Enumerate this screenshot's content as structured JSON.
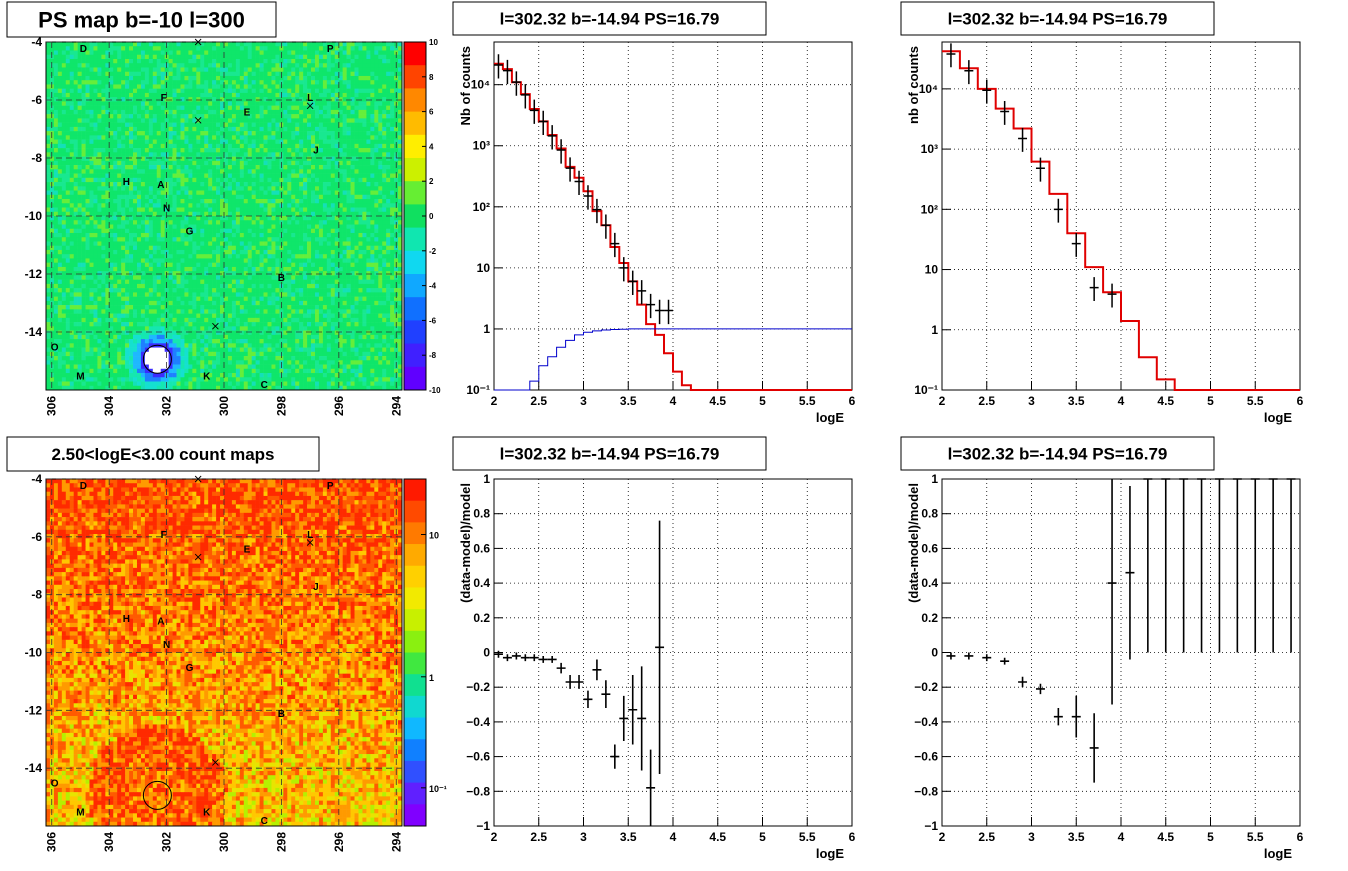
{
  "chart_data": [
    {
      "type": "heatmap",
      "title": "PS map b=-10 l=300",
      "x_ticks": [
        "306",
        "304",
        "302",
        "300",
        "298",
        "296",
        "294"
      ],
      "y_ticks": [
        "-4",
        "-6",
        "-8",
        "-10",
        "-12",
        "-14"
      ],
      "colorbar_ticks": [
        "10",
        "8",
        "6",
        "4",
        "2",
        "0",
        "-2",
        "-4",
        "-6",
        "-8",
        "-10"
      ],
      "x_range": [
        306.2,
        293.8
      ],
      "y_range": [
        -16,
        -4
      ],
      "markers": [
        {
          "label": "D",
          "l": 304.9,
          "b": -4.2
        },
        {
          "label": "P",
          "l": 296.3,
          "b": -4.2
        },
        {
          "label": "F",
          "l": 302.1,
          "b": -5.9
        },
        {
          "label": "L",
          "l": 297.0,
          "b": -5.9
        },
        {
          "label": "E",
          "l": 299.2,
          "b": -6.4
        },
        {
          "label": "J",
          "l": 296.8,
          "b": -7.7
        },
        {
          "label": "H",
          "l": 303.4,
          "b": -8.8
        },
        {
          "label": "A",
          "l": 302.2,
          "b": -8.9
        },
        {
          "label": "N",
          "l": 302.0,
          "b": -9.7
        },
        {
          "label": "G",
          "l": 301.2,
          "b": -10.5
        },
        {
          "label": "B",
          "l": 298.0,
          "b": -12.1
        },
        {
          "label": "O",
          "l": 305.9,
          "b": -14.5
        },
        {
          "label": "M",
          "l": 305.0,
          "b": -15.5
        },
        {
          "label": "K",
          "l": 300.6,
          "b": -15.5
        },
        {
          "label": "C",
          "l": 298.6,
          "b": -15.8
        }
      ],
      "crosses": [
        {
          "l": 300.9,
          "b": -4
        },
        {
          "l": 300.9,
          "b": -6.7
        },
        {
          "l": 297,
          "b": -6.2
        },
        {
          "l": 300.3,
          "b": -13.8
        }
      ],
      "circle": {
        "l": 302.32,
        "b": -14.94
      }
    },
    {
      "type": "line",
      "title": "l=302.32 b=-14.94 PS=16.79",
      "xlabel": "logE",
      "ylabel": "Nb of counts",
      "x_ticks": [
        "2",
        "2.5",
        "3",
        "3.5",
        "4",
        "4.5",
        "5",
        "5.5",
        "6"
      ],
      "y_ticks": [
        "10⁻¹",
        "1",
        "10",
        "10²",
        "10³",
        "10⁴"
      ],
      "xlim": [
        2,
        6
      ],
      "ylim": [
        0.1,
        50000
      ],
      "y_log": true,
      "series": [
        {
          "role": "model",
          "color": "#e00000",
          "step_edges": [
            2,
            2.1,
            2.2,
            2.3,
            2.4,
            2.5,
            2.6,
            2.7,
            2.8,
            2.9,
            3.0,
            3.1,
            3.2,
            3.3,
            3.4,
            3.5,
            3.6,
            3.7,
            3.8,
            3.9,
            4.0,
            4.1,
            4.2,
            4.3,
            4.4,
            6.0
          ],
          "values": [
            22000,
            18000,
            11000,
            7000,
            4000,
            2500,
            1500,
            900,
            450,
            300,
            180,
            85,
            50,
            22,
            12,
            6,
            2.5,
            1.2,
            0.8,
            0.4,
            0.2,
            0.12,
            0.1,
            0.1,
            0.1
          ]
        },
        {
          "role": "blue",
          "color": "#0000cc",
          "step_edges": [
            2,
            2.4,
            2.5,
            2.6,
            2.7,
            2.8,
            2.9,
            3.0,
            3.1,
            3.2,
            3.3,
            3.4,
            3.5,
            6.0
          ],
          "values": [
            0.1,
            0.14,
            0.25,
            0.35,
            0.5,
            0.65,
            0.8,
            0.88,
            0.93,
            0.96,
            0.98,
            0.99,
            1.0
          ]
        },
        {
          "role": "data",
          "color": "#000000",
          "x": [
            2.05,
            2.15,
            2.25,
            2.35,
            2.45,
            2.55,
            2.65,
            2.75,
            2.85,
            2.95,
            3.05,
            3.15,
            3.25,
            3.35,
            3.45,
            3.55,
            3.65,
            3.75,
            3.85,
            3.95
          ],
          "y": [
            21000,
            17000,
            11000,
            6800,
            3800,
            2500,
            1450,
            850,
            430,
            260,
            150,
            90,
            50,
            25,
            10,
            6,
            4.2,
            2.5,
            2,
            2
          ]
        }
      ]
    },
    {
      "type": "line",
      "title": "l=302.32 b=-14.94 PS=16.79",
      "xlabel": "logE",
      "ylabel": "nb of counts",
      "x_ticks": [
        "2",
        "2.5",
        "3",
        "3.5",
        "4",
        "4.5",
        "5",
        "5.5",
        "6"
      ],
      "y_ticks": [
        "10⁻¹",
        "1",
        "10",
        "10²",
        "10³",
        "10⁴"
      ],
      "xlim": [
        2,
        6
      ],
      "ylim": [
        0.1,
        60000
      ],
      "y_log": true,
      "series": [
        {
          "role": "model",
          "color": "#e00000",
          "step_edges": [
            2,
            2.2,
            2.4,
            2.6,
            2.8,
            3.0,
            3.2,
            3.4,
            3.6,
            3.8,
            4.0,
            4.2,
            4.4,
            4.6,
            6.0
          ],
          "values": [
            42000,
            22000,
            10000,
            4700,
            2200,
            620,
            180,
            40,
            11,
            4.2,
            1.4,
            0.35,
            0.15,
            0.1
          ]
        },
        {
          "role": "data",
          "color": "#000000",
          "x": [
            2.1,
            2.3,
            2.5,
            2.7,
            2.9,
            3.1,
            3.3,
            3.5,
            3.7,
            3.9
          ],
          "y": [
            38000,
            20000,
            9500,
            4200,
            1500,
            480,
            100,
            27,
            5,
            3.9
          ]
        }
      ]
    },
    {
      "type": "heatmap",
      "title": "2.50<logE<3.00 count maps",
      "x_ticks": [
        "306",
        "304",
        "302",
        "300",
        "298",
        "296",
        "294"
      ],
      "y_ticks": [
        "-4",
        "-6",
        "-8",
        "-10",
        "-12",
        "-14"
      ],
      "colorbar_ticks": [
        "10",
        "1",
        "10⁻¹"
      ],
      "x_range": [
        306.2,
        293.8
      ],
      "y_range": [
        -16,
        -4
      ],
      "markers": [
        {
          "label": "D",
          "l": 304.9,
          "b": -4.2
        },
        {
          "label": "P",
          "l": 296.3,
          "b": -4.2
        },
        {
          "label": "F",
          "l": 302.1,
          "b": -5.9
        },
        {
          "label": "L",
          "l": 297.0,
          "b": -5.9
        },
        {
          "label": "E",
          "l": 299.2,
          "b": -6.4
        },
        {
          "label": "J",
          "l": 296.8,
          "b": -7.7
        },
        {
          "label": "H",
          "l": 303.4,
          "b": -8.8
        },
        {
          "label": "A",
          "l": 302.2,
          "b": -8.9
        },
        {
          "label": "N",
          "l": 302.0,
          "b": -9.7
        },
        {
          "label": "G",
          "l": 301.2,
          "b": -10.5
        },
        {
          "label": "B",
          "l": 298.0,
          "b": -12.1
        },
        {
          "label": "O",
          "l": 305.9,
          "b": -14.5
        },
        {
          "label": "M",
          "l": 305.0,
          "b": -15.5
        },
        {
          "label": "K",
          "l": 300.6,
          "b": -15.5
        },
        {
          "label": "C",
          "l": 298.6,
          "b": -15.8
        }
      ],
      "crosses": [
        {
          "l": 300.9,
          "b": -4
        },
        {
          "l": 300.9,
          "b": -6.7
        },
        {
          "l": 297,
          "b": -6.2
        },
        {
          "l": 300.3,
          "b": -13.8
        }
      ],
      "circle": {
        "l": 302.32,
        "b": -14.94
      }
    },
    {
      "type": "scatter",
      "title": "l=302.32 b=-14.94 PS=16.79",
      "xlabel": "logE",
      "ylabel": "(data-model)/model",
      "x_ticks": [
        "2",
        "2.5",
        "3",
        "3.5",
        "4",
        "4.5",
        "5",
        "5.5",
        "6"
      ],
      "y_ticks": [
        "−1",
        "−0.8",
        "−0.6",
        "−0.4",
        "−0.2",
        "0",
        "0.2",
        "0.4",
        "0.6",
        "0.8",
        "1"
      ],
      "xlim": [
        2,
        6
      ],
      "ylim": [
        -1,
        1
      ],
      "points": [
        {
          "x": 2.05,
          "y": -0.01,
          "err": 0.02
        },
        {
          "x": 2.15,
          "y": -0.03,
          "err": 0.02
        },
        {
          "x": 2.25,
          "y": -0.02,
          "err": 0.02
        },
        {
          "x": 2.35,
          "y": -0.03,
          "err": 0.02
        },
        {
          "x": 2.45,
          "y": -0.03,
          "err": 0.02
        },
        {
          "x": 2.55,
          "y": -0.04,
          "err": 0.02
        },
        {
          "x": 2.65,
          "y": -0.04,
          "err": 0.02
        },
        {
          "x": 2.75,
          "y": -0.09,
          "err": 0.03
        },
        {
          "x": 2.85,
          "y": -0.17,
          "err": 0.04
        },
        {
          "x": 2.95,
          "y": -0.17,
          "err": 0.04
        },
        {
          "x": 3.05,
          "y": -0.27,
          "err": 0.05
        },
        {
          "x": 3.15,
          "y": -0.1,
          "err": 0.06
        },
        {
          "x": 3.25,
          "y": -0.24,
          "err": 0.08
        },
        {
          "x": 3.35,
          "y": -0.6,
          "err": 0.07
        },
        {
          "x": 3.45,
          "y": -0.38,
          "err": 0.13
        },
        {
          "x": 3.55,
          "y": -0.33,
          "err": 0.2
        },
        {
          "x": 3.65,
          "y": -0.38,
          "err": 0.3
        },
        {
          "x": 3.75,
          "y": -0.78,
          "err": 0.22
        },
        {
          "x": 3.85,
          "y": 0.03,
          "err": 0.73
        }
      ]
    },
    {
      "type": "scatter",
      "title": "l=302.32 b=-14.94 PS=16.79",
      "xlabel": "logE",
      "ylabel": "(data-model)/model",
      "x_ticks": [
        "2",
        "2.5",
        "3",
        "3.5",
        "4",
        "4.5",
        "5",
        "5.5",
        "6"
      ],
      "y_ticks": [
        "−1",
        "−0.8",
        "−0.6",
        "−0.4",
        "−0.2",
        "0",
        "0.2",
        "0.4",
        "0.6",
        "0.8",
        "1"
      ],
      "xlim": [
        2,
        6
      ],
      "ylim": [
        -1,
        1
      ],
      "points": [
        {
          "x": 2.1,
          "y": -0.02,
          "err": 0.02
        },
        {
          "x": 2.3,
          "y": -0.02,
          "err": 0.02
        },
        {
          "x": 2.5,
          "y": -0.03,
          "err": 0.02
        },
        {
          "x": 2.7,
          "y": -0.05,
          "err": 0.02
        },
        {
          "x": 2.9,
          "y": -0.17,
          "err": 0.03
        },
        {
          "x": 3.1,
          "y": -0.21,
          "err": 0.03
        },
        {
          "x": 3.3,
          "y": -0.37,
          "err": 0.05
        },
        {
          "x": 3.5,
          "y": -0.37,
          "err": 0.12
        },
        {
          "x": 3.7,
          "y": -0.55,
          "err": 0.2
        },
        {
          "x": 3.9,
          "y": 0.4,
          "err": 0.7
        },
        {
          "x": 4.1,
          "y": 0.46,
          "err": 0.5
        },
        {
          "x": 4.3,
          "y": 1,
          "err": 1
        },
        {
          "x": 4.5,
          "y": 1,
          "err": 1
        },
        {
          "x": 4.7,
          "y": 1,
          "err": 1
        },
        {
          "x": 4.9,
          "y": 1,
          "err": 1
        },
        {
          "x": 5.1,
          "y": 1,
          "err": 1
        },
        {
          "x": 5.3,
          "y": 1,
          "err": 1
        },
        {
          "x": 5.5,
          "y": 1,
          "err": 1
        },
        {
          "x": 5.7,
          "y": 1,
          "err": 1
        },
        {
          "x": 5.9,
          "y": 1,
          "err": 1
        }
      ]
    }
  ]
}
